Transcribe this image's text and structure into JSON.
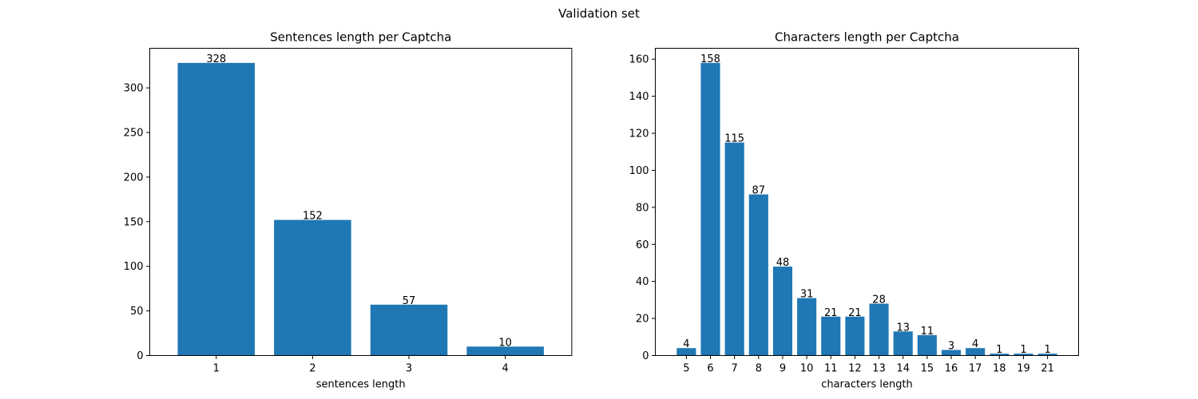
{
  "suptitle": "Validation set",
  "colors": {
    "bar": "#1f77b4",
    "axis": "#000000",
    "background": "#ffffff"
  },
  "chart_data": [
    {
      "type": "bar",
      "title": "Sentences length per Captcha",
      "xlabel": "sentences length",
      "ylabel": "",
      "categories": [
        "1",
        "2",
        "3",
        "4"
      ],
      "values": [
        328,
        152,
        57,
        10
      ],
      "data_labels": [
        "328",
        "152",
        "57",
        "10"
      ],
      "ylim": [
        0,
        344.4
      ],
      "yticks": [
        0,
        50,
        100,
        150,
        200,
        250,
        300
      ],
      "grid": false,
      "legend": "none"
    },
    {
      "type": "bar",
      "title": "Characters length per Captcha",
      "xlabel": "characters length",
      "ylabel": "",
      "categories": [
        "5",
        "6",
        "7",
        "8",
        "9",
        "10",
        "11",
        "12",
        "13",
        "14",
        "15",
        "16",
        "17",
        "18",
        "19",
        "21"
      ],
      "values": [
        4,
        158,
        115,
        87,
        48,
        31,
        21,
        21,
        28,
        13,
        11,
        3,
        4,
        1,
        1,
        1
      ],
      "data_labels": [
        "4",
        "158",
        "115",
        "87",
        "48",
        "31",
        "21",
        "21",
        "28",
        "13",
        "11",
        "3",
        "4",
        "1",
        "1",
        "1"
      ],
      "ylim": [
        0,
        165.9
      ],
      "yticks": [
        0,
        20,
        40,
        60,
        80,
        100,
        120,
        140,
        160
      ],
      "grid": false,
      "legend": "none"
    }
  ]
}
